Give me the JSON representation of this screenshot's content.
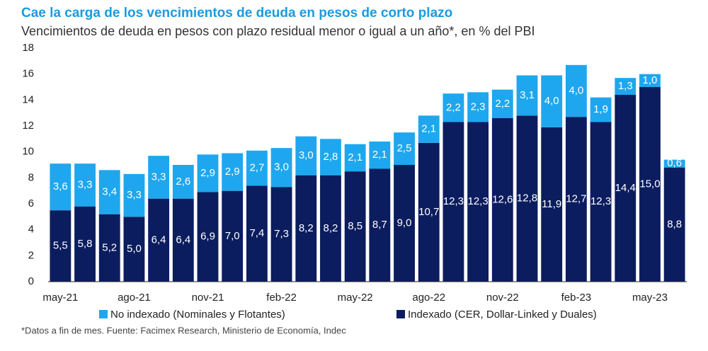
{
  "chart_data": {
    "type": "stacked_bar",
    "title": "Cae la carga de los vencimientos de deuda en pesos de corto plazo",
    "subtitle": "Vencimientos de deuda en pesos con plazo residual menor o igual a un año*, en % del PBI",
    "footnote": "*Datos a fin de mes. Fuente: Facimex Research, Ministerio de Economía, Indec",
    "categories": [
      "may-21",
      null,
      null,
      "ago-21",
      null,
      null,
      "nov-21",
      null,
      null,
      "feb-22",
      null,
      null,
      "may-22",
      null,
      null,
      "ago-22",
      null,
      null,
      "nov-22",
      null,
      null,
      "feb-23",
      null,
      null,
      "may-23",
      null
    ],
    "series": [
      {
        "name": "Indexado (CER, Dollar-Linked y Duales)",
        "color": "#0b1d5e",
        "values": [
          5.5,
          5.8,
          5.2,
          5.0,
          6.4,
          6.4,
          6.9,
          7.0,
          7.4,
          7.3,
          8.2,
          8.2,
          8.5,
          8.7,
          9.0,
          10.7,
          12.3,
          12.3,
          12.6,
          12.8,
          11.9,
          12.7,
          12.3,
          14.4,
          15.0,
          8.8
        ],
        "value_labels": [
          "5,5",
          "5,8",
          "5,2",
          "5,0",
          "6,4",
          "6,4",
          "6,9",
          "7,0",
          "7,4",
          "7,3",
          "8,2",
          "8,2",
          "8,5",
          "8,7",
          "9,0",
          "10,7",
          "12,3",
          "12,3",
          "12,6",
          "12,8",
          "11,9",
          "12,7",
          "12,3",
          "14,4",
          "15,0",
          "8,8"
        ]
      },
      {
        "name": "No indexado (Nominales y Flotantes)",
        "color": "#1ea7ef",
        "values": [
          3.6,
          3.3,
          3.4,
          3.3,
          3.3,
          2.6,
          2.9,
          2.9,
          2.7,
          3.0,
          3.0,
          2.8,
          2.1,
          2.1,
          2.5,
          2.1,
          2.2,
          2.3,
          2.2,
          3.1,
          4.0,
          4.0,
          1.9,
          1.3,
          1.0,
          0.6
        ],
        "value_labels": [
          "3,6",
          "3,3",
          "3,4",
          "3,3",
          "3,3",
          "2,6",
          "2,9",
          "2,9",
          "2,7",
          "3,0",
          "3,0",
          "2,8",
          "2,1",
          "2,1",
          "2,5",
          "2,1",
          "2,2",
          "2,3",
          "2,2",
          "3,1",
          "4,0",
          "4,0",
          "1,9",
          "1,3",
          "1,0",
          "0,6"
        ]
      }
    ],
    "ylim": [
      0,
      18
    ],
    "yticks": [
      0,
      2,
      4,
      6,
      8,
      10,
      12,
      14,
      16,
      18
    ],
    "grid": false
  }
}
